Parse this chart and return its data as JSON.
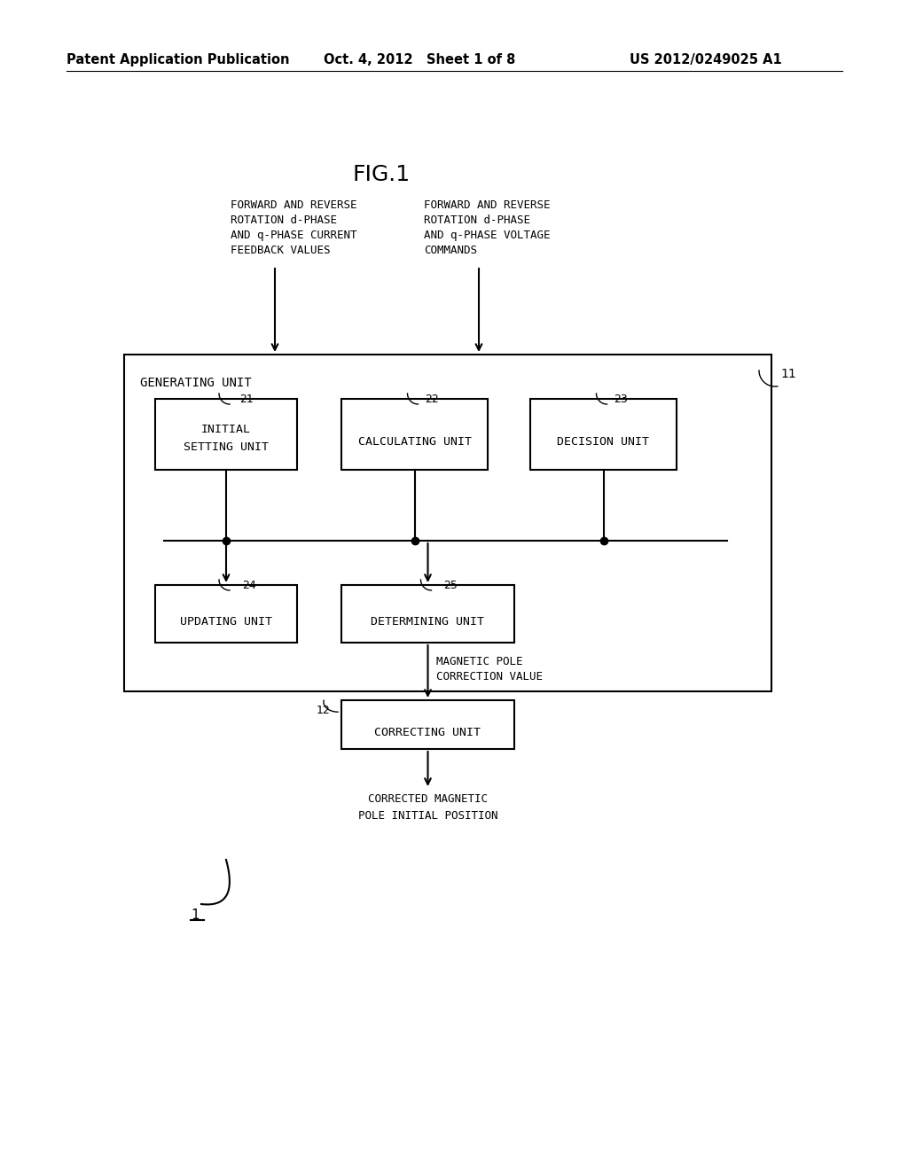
{
  "bg_color": "#ffffff",
  "header_left": "Patent Application Publication",
  "header_mid": "Oct. 4, 2012   Sheet 1 of 8",
  "header_right": "US 2012/0249025 A1",
  "fig_title": "FIG.1",
  "input1_lines": [
    "FORWARD AND REVERSE",
    "ROTATION d-PHASE",
    "AND q-PHASE CURRENT",
    "FEEDBACK VALUES"
  ],
  "input2_lines": [
    "FORWARD AND REVERSE",
    "ROTATION d-PHASE",
    "AND q-PHASE VOLTAGE",
    "COMMANDS"
  ],
  "gen_unit_label": "GENERATING UNIT",
  "gen_unit_ref": "11",
  "box21_lines": [
    "INITIAL",
    "SETTING UNIT"
  ],
  "box21_ref": "21",
  "box22_lines": [
    "CALCULATING UNIT"
  ],
  "box22_ref": "22",
  "box23_lines": [
    "DECISION UNIT"
  ],
  "box23_ref": "23",
  "box24_lines": [
    "UPDATING UNIT"
  ],
  "box24_ref": "24",
  "box25_lines": [
    "DETERMINING UNIT"
  ],
  "box25_ref": "25",
  "mag_pole_corr_lines": [
    "MAGNETIC POLE",
    "CORRECTION VALUE"
  ],
  "box12_lines": [
    "CORRECTING UNIT"
  ],
  "box12_ref": "12",
  "corrected_lines": [
    "CORRECTED MAGNETIC",
    "POLE INITIAL POSITION"
  ],
  "overall_ref": "1",
  "font_family": "DejaVu Sans",
  "mono_font": "DejaVu Sans Mono"
}
